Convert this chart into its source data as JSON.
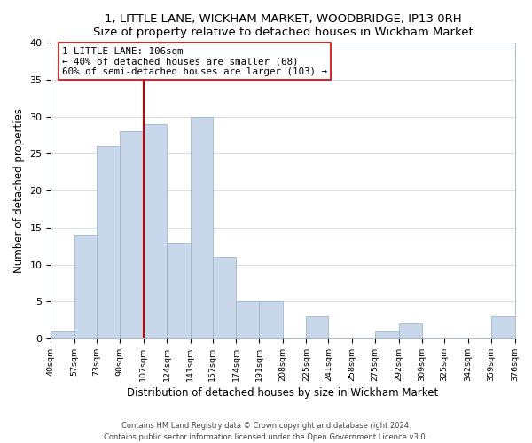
{
  "title": "1, LITTLE LANE, WICKHAM MARKET, WOODBRIDGE, IP13 0RH",
  "subtitle": "Size of property relative to detached houses in Wickham Market",
  "xlabel": "Distribution of detached houses by size in Wickham Market",
  "ylabel": "Number of detached properties",
  "bar_edges": [
    40,
    57,
    73,
    90,
    107,
    124,
    141,
    157,
    174,
    191,
    208,
    225,
    241,
    258,
    275,
    292,
    309,
    325,
    342,
    359,
    376
  ],
  "bar_heights": [
    1,
    14,
    26,
    28,
    29,
    13,
    30,
    11,
    5,
    5,
    0,
    3,
    0,
    0,
    1,
    2,
    0,
    0,
    0,
    3
  ],
  "bar_color": "#c8d8ea",
  "bar_edgecolor": "#9db8cc",
  "grid_color": "#d8e0e8",
  "vline_x": 107,
  "vline_color": "#cc0000",
  "annotation_text": "1 LITTLE LANE: 106sqm\n← 40% of detached houses are smaller (68)\n60% of semi-detached houses are larger (103) →",
  "annotation_box_color": "#ffffff",
  "annotation_box_edgecolor": "#cc0000",
  "ylim": [
    0,
    40
  ],
  "yticks": [
    0,
    5,
    10,
    15,
    20,
    25,
    30,
    35,
    40
  ],
  "tick_labels": [
    "40sqm",
    "57sqm",
    "73sqm",
    "90sqm",
    "107sqm",
    "124sqm",
    "141sqm",
    "157sqm",
    "174sqm",
    "191sqm",
    "208sqm",
    "225sqm",
    "241sqm",
    "258sqm",
    "275sqm",
    "292sqm",
    "309sqm",
    "325sqm",
    "342sqm",
    "359sqm",
    "376sqm"
  ],
  "footer_line1": "Contains HM Land Registry data © Crown copyright and database right 2024.",
  "footer_line2": "Contains public sector information licensed under the Open Government Licence v3.0."
}
